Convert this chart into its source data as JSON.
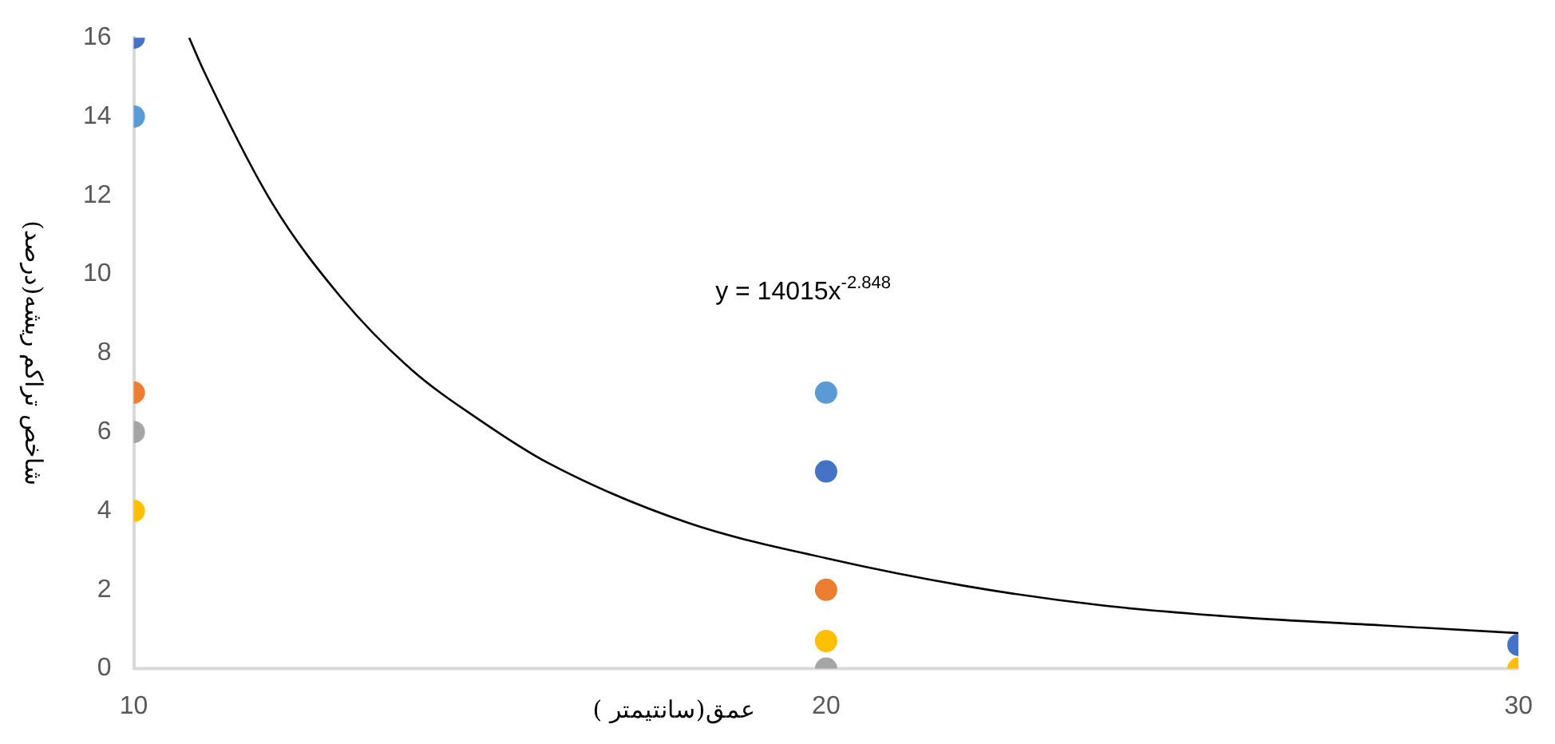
{
  "chart_data": {
    "type": "scatter",
    "xlabel": "عمق(سانتیمتر )",
    "ylabel": "شاخص تراکم ریشه(درصد)",
    "x": [
      10,
      20,
      30
    ],
    "series": [
      {
        "color": "#4472c4",
        "values": [
          16,
          5,
          0.6
        ]
      },
      {
        "color": "#5b9bd5",
        "values": [
          14,
          7,
          null
        ]
      },
      {
        "color": "#ed7d31",
        "values": [
          7,
          2,
          null
        ]
      },
      {
        "color": "#a5a5a5",
        "values": [
          6,
          0,
          null
        ]
      },
      {
        "color": "#ffc000",
        "values": [
          4,
          0.7,
          0
        ]
      },
      {
        "type": "line",
        "color": "#000000",
        "marker": "none",
        "x": [
          10.8,
          11,
          12,
          13,
          14,
          15,
          16,
          18,
          20,
          22,
          24,
          26,
          28,
          30
        ],
        "values": [
          16.0,
          15.2,
          11.8,
          9.4,
          7.6,
          6.3,
          5.2,
          3.7,
          2.8,
          2.1,
          1.6,
          1.3,
          1.1,
          0.9
        ]
      }
    ],
    "xlim": [
      10,
      30
    ],
    "xticks": [
      10,
      20,
      30
    ],
    "ylim": [
      0,
      16
    ],
    "yticks": [
      0,
      2,
      4,
      6,
      8,
      10,
      12,
      14,
      16
    ],
    "grid": false,
    "legend": false,
    "marker": "circle",
    "annotations": [
      "y = 14015x$^{-2.848}$"
    ]
  }
}
